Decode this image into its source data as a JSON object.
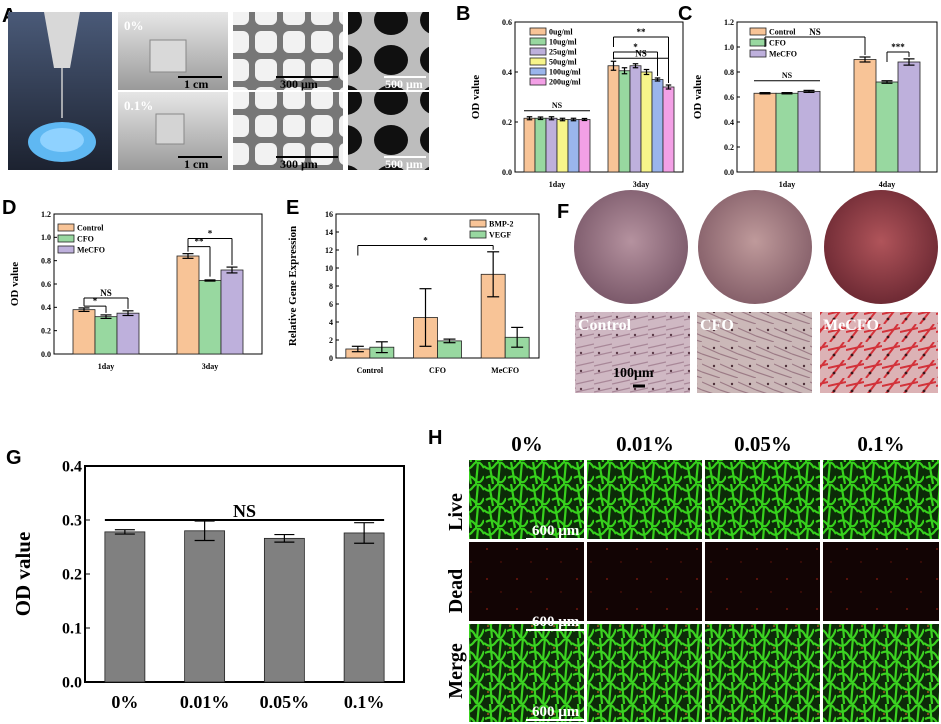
{
  "panels": {
    "A": {
      "letter": "A",
      "row_labels": [
        "0%",
        "0.1%"
      ],
      "scale_labels": [
        "1 cm",
        "300 μm",
        "500 μm",
        "1 cm",
        "300 μm",
        "500 μm"
      ]
    },
    "F": {
      "letter": "F",
      "micro_labels": [
        "Control",
        "CFO",
        "MeCFO"
      ],
      "scale_label": "100μm"
    },
    "H": {
      "letter": "H",
      "col_labels": [
        "0%",
        "0.01%",
        "0.05%",
        "0.1%"
      ],
      "row_labels": [
        "Live",
        "Dead",
        "Merge"
      ],
      "scale_label": "600 μm"
    }
  },
  "colors": {
    "orange": "#f8c497",
    "green": "#98d8a0",
    "purple": "#beb0dc",
    "yellow": "#f7f58a",
    "blue": "#9ab5ec",
    "pink": "#f3a0e6",
    "gray": "#808080",
    "live_green": "#31c41a"
  },
  "chart_data": [
    {
      "id": "B",
      "letter": "B",
      "type": "bar",
      "categories": [
        "1day",
        "3day"
      ],
      "series": [
        {
          "name": "0ug/ml",
          "values": [
            0.215,
            0.425
          ],
          "errors": [
            0.006,
            0.018
          ],
          "color": "#f8c497"
        },
        {
          "name": "10ug/ml",
          "values": [
            0.215,
            0.405
          ],
          "errors": [
            0.005,
            0.012
          ],
          "color": "#98d8a0"
        },
        {
          "name": "25ug/ml",
          "values": [
            0.215,
            0.425
          ],
          "errors": [
            0.006,
            0.008
          ],
          "color": "#beb0dc"
        },
        {
          "name": "50ug/ml",
          "values": [
            0.21,
            0.4
          ],
          "errors": [
            0.005,
            0.01
          ],
          "color": "#f7f58a"
        },
        {
          "name": "100ug/ml",
          "values": [
            0.21,
            0.37
          ],
          "errors": [
            0.005,
            0.006
          ],
          "color": "#9ab5ec"
        },
        {
          "name": "200ug/ml",
          "values": [
            0.21,
            0.34
          ],
          "errors": [
            0.004,
            0.008
          ],
          "color": "#f3a0e6"
        }
      ],
      "ylabel": "OD value",
      "ylim": [
        0,
        0.6
      ],
      "yticks": [
        "0.0",
        "0.2",
        "0.4",
        "0.6"
      ],
      "annotations": [
        "NS",
        "NS",
        "*",
        "**"
      ]
    },
    {
      "id": "C",
      "letter": "C",
      "type": "bar",
      "categories": [
        "1day",
        "4day"
      ],
      "series": [
        {
          "name": "Control",
          "values": [
            0.63,
            0.9
          ],
          "errors": [
            0.005,
            0.02
          ],
          "color": "#f8c497"
        },
        {
          "name": "CFO",
          "values": [
            0.63,
            0.72
          ],
          "errors": [
            0.005,
            0.01
          ],
          "color": "#98d8a0"
        },
        {
          "name": "MeCFO",
          "values": [
            0.645,
            0.88
          ],
          "errors": [
            0.008,
            0.025
          ],
          "color": "#beb0dc"
        }
      ],
      "ylabel": "OD value",
      "ylim": [
        0,
        1.2
      ],
      "yticks": [
        "0.0",
        "0.2",
        "0.4",
        "0.6",
        "0.8",
        "1.0",
        "1.2"
      ],
      "annotations": [
        "NS",
        "NS",
        "***"
      ]
    },
    {
      "id": "D",
      "letter": "D",
      "type": "bar",
      "categories": [
        "1day",
        "3day"
      ],
      "series": [
        {
          "name": "Control",
          "values": [
            0.38,
            0.84
          ],
          "errors": [
            0.015,
            0.02
          ],
          "color": "#f8c497"
        },
        {
          "name": "CFO",
          "values": [
            0.32,
            0.63
          ],
          "errors": [
            0.015,
            0.005
          ],
          "color": "#98d8a0"
        },
        {
          "name": "MeCFO",
          "values": [
            0.35,
            0.72
          ],
          "errors": [
            0.02,
            0.025
          ],
          "color": "#beb0dc"
        }
      ],
      "ylabel": "OD value",
      "ylim": [
        0,
        1.2
      ],
      "yticks": [
        "0.0",
        "0.2",
        "0.4",
        "0.6",
        "0.8",
        "1.0",
        "1.2"
      ],
      "annotations": [
        "NS",
        "*",
        "**",
        "*"
      ]
    },
    {
      "id": "E",
      "letter": "E",
      "type": "bar",
      "categories": [
        "Control",
        "CFO",
        "MeCFO"
      ],
      "series": [
        {
          "name": "BMP-2",
          "values": [
            1.0,
            4.5,
            9.3
          ],
          "errors": [
            0.3,
            3.2,
            2.5
          ],
          "color": "#f8c497"
        },
        {
          "name": "VEGF",
          "values": [
            1.2,
            1.9,
            2.3
          ],
          "errors": [
            0.6,
            0.2,
            1.1
          ],
          "color": "#98d8a0"
        }
      ],
      "ylabel": "Relative Gene Expression",
      "ylim": [
        0,
        16
      ],
      "yticks": [
        "0",
        "2",
        "4",
        "6",
        "8",
        "10",
        "12",
        "14",
        "16"
      ],
      "annotations": [
        "*"
      ]
    },
    {
      "id": "G",
      "letter": "G",
      "type": "bar",
      "categories": [
        "0%",
        "0.01%",
        "0.05%",
        "0.1%"
      ],
      "series": [
        {
          "values": [
            0.278,
            0.28,
            0.266,
            0.276
          ],
          "errors": [
            0.004,
            0.018,
            0.007,
            0.019
          ],
          "color": "#808080"
        }
      ],
      "ylabel": "OD value",
      "ylim": [
        0,
        0.4
      ],
      "yticks": [
        "0.0",
        "0.1",
        "0.2",
        "0.3",
        "0.4"
      ],
      "annotations": [
        "NS"
      ]
    }
  ]
}
